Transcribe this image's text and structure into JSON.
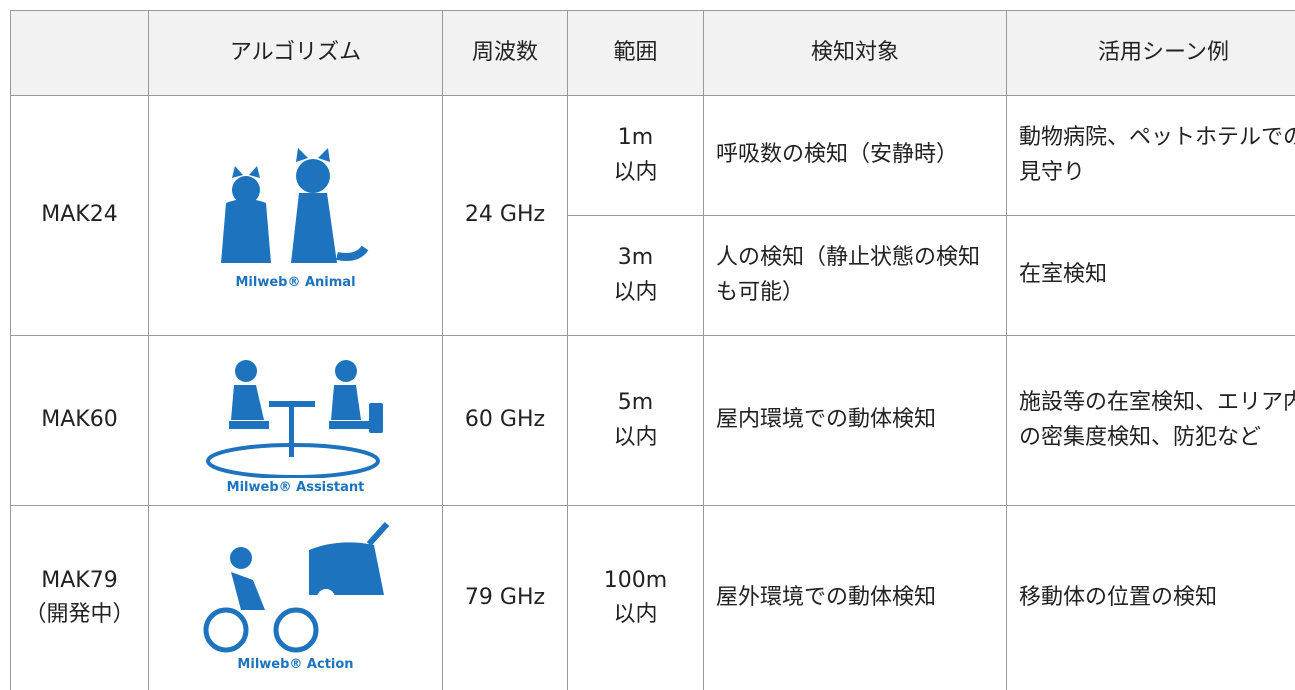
{
  "header": {
    "columns": [
      "アルゴリズム",
      "周波数",
      "範囲",
      "検知対象",
      "活用シーン例"
    ]
  },
  "rows": [
    {
      "model": "MAK24",
      "logo": "Milweb® Animal",
      "frequency": "24 GHz",
      "entries": [
        {
          "range": "1m\n以内",
          "target": "呼吸数の検知（安静時）",
          "use": "動物病院、ペットホテルでの見守り"
        },
        {
          "range": "3m\n以内",
          "target": "人の検知（静止状態の検知も可能）",
          "use": "在室検知"
        }
      ]
    },
    {
      "model": "MAK60",
      "logo": "Milweb® Assistant",
      "frequency": "60 GHz",
      "entries": [
        {
          "range": "5m\n以内",
          "target": "屋内環境での動体検知",
          "use": "施設等の在室検知、エリア内の密集度検知、防犯など"
        }
      ]
    },
    {
      "model": "MAK79\n（開発中）",
      "logo": "Milweb® Action",
      "frequency": "79 GHz",
      "entries": [
        {
          "range": "100m\n以内",
          "target": "屋外環境での動体検知",
          "use": "移動体の位置の検知"
        }
      ]
    }
  ]
}
